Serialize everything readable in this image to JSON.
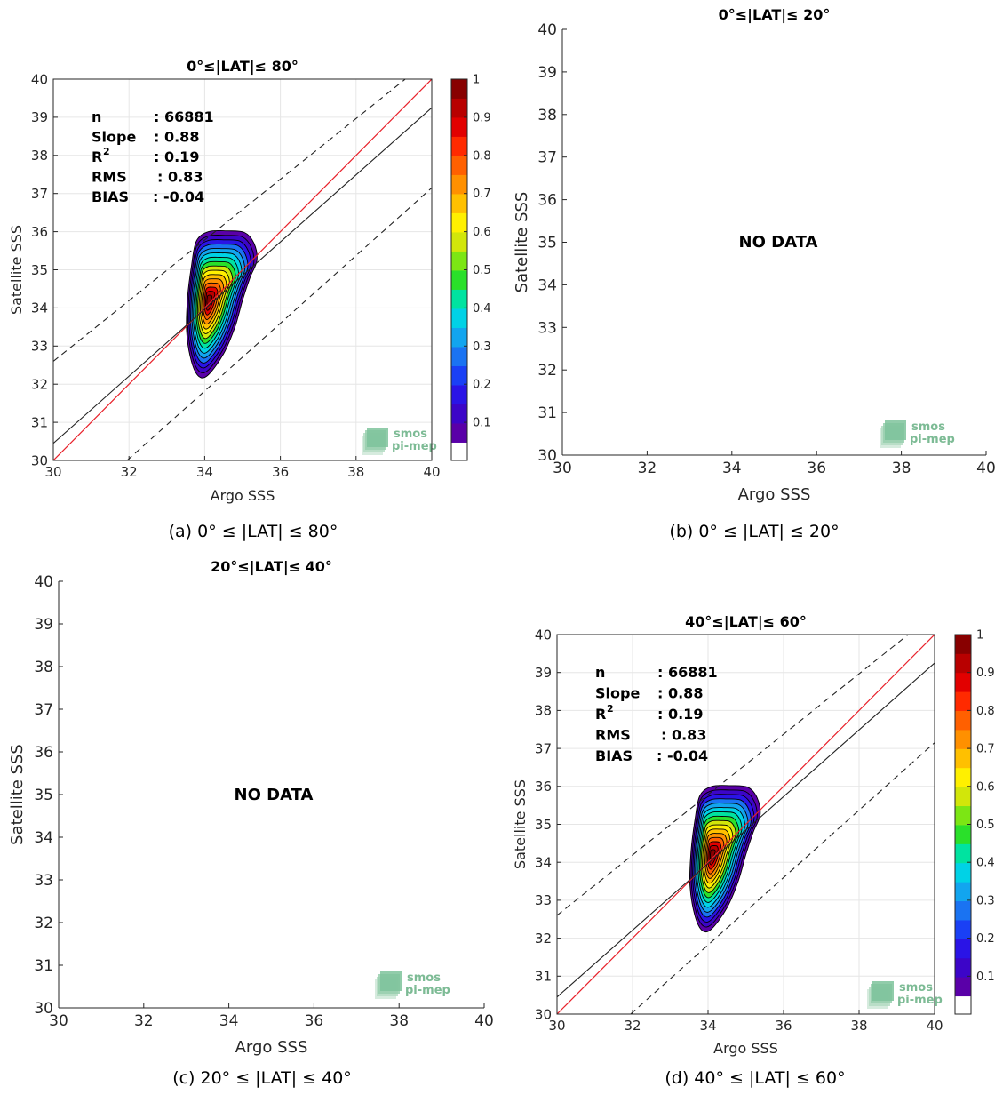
{
  "colors": {
    "identity_line": "#e8202a",
    "fit_line": "#222222",
    "bounds_line": "#222222",
    "grid": "#e6e6e6",
    "colormap": [
      "#5a00a8",
      "#3c05c8",
      "#2a14e6",
      "#1a40f5",
      "#1a73f2",
      "#12a5ef",
      "#00d2e6",
      "#00e3a0",
      "#2ae02a",
      "#7ce614",
      "#d2e60a",
      "#fff000",
      "#ffc000",
      "#ff9000",
      "#ff6000",
      "#ff2a00",
      "#e20000",
      "#b80000",
      "#880000"
    ]
  },
  "logo": {
    "line1": "smos",
    "line2": "pi-mep",
    "icon": "stacked-map-icon"
  },
  "colorbar": {
    "ticks": [
      "0.1",
      "0.2",
      "0.3",
      "0.4",
      "0.5",
      "0.6",
      "0.7",
      "0.8",
      "0.9",
      "1"
    ]
  },
  "panels": [
    {
      "id": "a",
      "title": "0°≤|LAT|≤ 80°",
      "caption": "(a) 0° ≤ |LAT| ≤ 80°",
      "has_data": true,
      "no_data_label": "",
      "stats": [
        {
          "key": "n",
          "value": ": 66881"
        },
        {
          "key": "Slope",
          "value": ": 0.88"
        },
        {
          "key": "R",
          "sup": "2",
          "value": ": 0.19"
        },
        {
          "key": "RMS",
          "value": ": 0.83"
        },
        {
          "key": "BIAS",
          "value": ": -0.04"
        }
      ]
    },
    {
      "id": "b",
      "title": "0°≤|LAT|≤ 20°",
      "caption": "(b) 0° ≤ |LAT| ≤ 20°",
      "has_data": false,
      "no_data_label": "NO DATA",
      "stats": []
    },
    {
      "id": "c",
      "title": "20°≤|LAT|≤ 40°",
      "caption": "(c) 20° ≤ |LAT| ≤ 40°",
      "has_data": false,
      "no_data_label": "NO DATA",
      "stats": []
    },
    {
      "id": "d",
      "title": "40°≤|LAT|≤ 60°",
      "caption": "(d) 40° ≤ |LAT| ≤ 60°",
      "has_data": true,
      "no_data_label": "",
      "stats": [
        {
          "key": "n",
          "value": ": 66881"
        },
        {
          "key": "Slope",
          "value": ": 0.88"
        },
        {
          "key": "R",
          "sup": "2",
          "value": ": 0.19"
        },
        {
          "key": "RMS",
          "value": ": 0.83"
        },
        {
          "key": "BIAS",
          "value": ": -0.04"
        }
      ]
    }
  ],
  "chart_data": [
    {
      "type": "heatmap",
      "title": "0°≤|LAT|≤ 80°",
      "xlabel": "Argo SSS",
      "ylabel": "Satellite SSS",
      "xlim": [
        30,
        40
      ],
      "ylim": [
        30,
        40
      ],
      "xticks": [
        30,
        32,
        34,
        36,
        38,
        40
      ],
      "yticks": [
        30,
        31,
        32,
        33,
        34,
        35,
        36,
        37,
        38,
        39,
        40
      ],
      "grid": true,
      "colorbar": {
        "range": [
          0,
          1
        ],
        "ticks": [
          0.1,
          0.2,
          0.3,
          0.4,
          0.5,
          0.6,
          0.7,
          0.8,
          0.9,
          1
        ]
      },
      "density_peak": [
        34.1,
        34.2
      ],
      "density_extent_x": [
        33.5,
        35.4
      ],
      "density_extent_y": [
        32.2,
        36.0
      ],
      "lines": {
        "identity": {
          "slope": 1,
          "intercept": 0
        },
        "fit": {
          "x": [
            30,
            40
          ],
          "y": [
            30.45,
            39.25
          ]
        },
        "upper_bound": {
          "x": [
            30,
            39.3
          ],
          "y": [
            32.6,
            40
          ]
        },
        "lower_bound": {
          "x": [
            31.95,
            40
          ],
          "y": [
            30,
            37.15
          ]
        }
      },
      "stats": {
        "n": 66881,
        "slope": 0.88,
        "r2": 0.19,
        "rms": 0.83,
        "bias": -0.04
      }
    },
    {
      "type": "scatter",
      "title": "0°≤|LAT|≤ 20°",
      "xlabel": "Argo SSS",
      "ylabel": "Satellite SSS",
      "xlim": [
        30,
        40
      ],
      "ylim": [
        30,
        40
      ],
      "xticks": [
        30,
        32,
        34,
        36,
        38,
        40
      ],
      "yticks": [
        30,
        31,
        32,
        33,
        34,
        35,
        36,
        37,
        38,
        39,
        40
      ],
      "grid": false,
      "annotation": "NO DATA"
    },
    {
      "type": "scatter",
      "title": "20°≤|LAT|≤ 40°",
      "xlabel": "Argo SSS",
      "ylabel": "Satellite SSS",
      "xlim": [
        30,
        40
      ],
      "ylim": [
        30,
        40
      ],
      "xticks": [
        30,
        32,
        34,
        36,
        38,
        40
      ],
      "yticks": [
        30,
        31,
        32,
        33,
        34,
        35,
        36,
        37,
        38,
        39,
        40
      ],
      "grid": false,
      "annotation": "NO DATA"
    },
    {
      "type": "heatmap",
      "title": "40°≤|LAT|≤ 60°",
      "xlabel": "Argo SSS",
      "ylabel": "Satellite SSS",
      "xlim": [
        30,
        40
      ],
      "ylim": [
        30,
        40
      ],
      "xticks": [
        30,
        32,
        34,
        36,
        38,
        40
      ],
      "yticks": [
        30,
        31,
        32,
        33,
        34,
        35,
        36,
        37,
        38,
        39,
        40
      ],
      "grid": true,
      "colorbar": {
        "range": [
          0,
          1
        ],
        "ticks": [
          0.1,
          0.2,
          0.3,
          0.4,
          0.5,
          0.6,
          0.7,
          0.8,
          0.9,
          1
        ]
      },
      "density_peak": [
        34.1,
        34.2
      ],
      "density_extent_x": [
        33.5,
        35.4
      ],
      "density_extent_y": [
        32.2,
        36.0
      ],
      "lines": {
        "identity": {
          "slope": 1,
          "intercept": 0
        },
        "fit": {
          "x": [
            30,
            40
          ],
          "y": [
            30.45,
            39.25
          ]
        },
        "upper_bound": {
          "x": [
            30,
            39.3
          ],
          "y": [
            32.6,
            40
          ]
        },
        "lower_bound": {
          "x": [
            31.95,
            40
          ],
          "y": [
            30,
            37.15
          ]
        }
      },
      "stats": {
        "n": 66881,
        "slope": 0.88,
        "r2": 0.19,
        "rms": 0.83,
        "bias": -0.04
      }
    }
  ]
}
